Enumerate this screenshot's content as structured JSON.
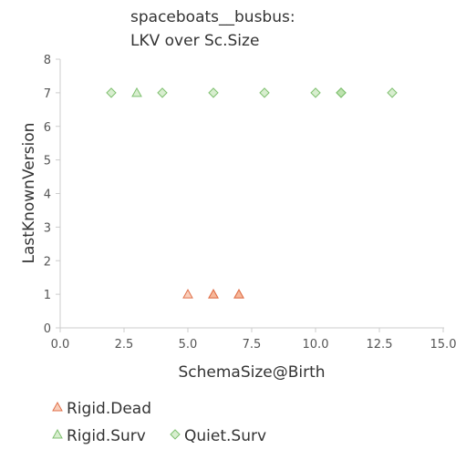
{
  "chart_data": {
    "type": "scatter",
    "title": [
      "spaceboats__busbus:",
      "LKV over Sc.Size"
    ],
    "xlabel": "SchemaSize@Birth",
    "ylabel": "LastKnownVersion",
    "xlim": [
      0,
      15
    ],
    "ylim": [
      0,
      8
    ],
    "x_ticks": [
      0.0,
      2.5,
      5.0,
      7.5,
      10.0,
      12.5,
      15.0
    ],
    "x_tick_labels": [
      "0.0",
      "2.5",
      "5.0",
      "7.5",
      "10.0",
      "12.5",
      "15.0"
    ],
    "y_ticks": [
      0,
      1,
      2,
      3,
      4,
      5,
      6,
      7,
      8
    ],
    "y_tick_labels": [
      "0",
      "1",
      "2",
      "3",
      "4",
      "5",
      "6",
      "7",
      "8"
    ],
    "grid": false,
    "legend_position": "bottom",
    "series": [
      {
        "name": "Rigid.Dead",
        "marker": "triangle",
        "color": "#f4a582",
        "stroke": "#e0704a",
        "points": [
          {
            "x": 5,
            "y": 1
          },
          {
            "x": 6,
            "y": 1
          },
          {
            "x": 6,
            "y": 1
          },
          {
            "x": 7,
            "y": 1
          },
          {
            "x": 7,
            "y": 1
          }
        ]
      },
      {
        "name": "Rigid.Surv",
        "marker": "triangle",
        "color": "#b8e0a8",
        "stroke": "#7fc070",
        "points": [
          {
            "x": 3,
            "y": 7
          }
        ]
      },
      {
        "name": "Quiet.Surv",
        "marker": "diamond",
        "color": "#b8e0a8",
        "stroke": "#7fc070",
        "points": [
          {
            "x": 2,
            "y": 7
          },
          {
            "x": 4,
            "y": 7
          },
          {
            "x": 6,
            "y": 7
          },
          {
            "x": 8,
            "y": 7
          },
          {
            "x": 10,
            "y": 7
          },
          {
            "x": 11,
            "y": 7
          },
          {
            "x": 11,
            "y": 7
          },
          {
            "x": 11,
            "y": 7
          },
          {
            "x": 13,
            "y": 7
          }
        ]
      }
    ]
  }
}
